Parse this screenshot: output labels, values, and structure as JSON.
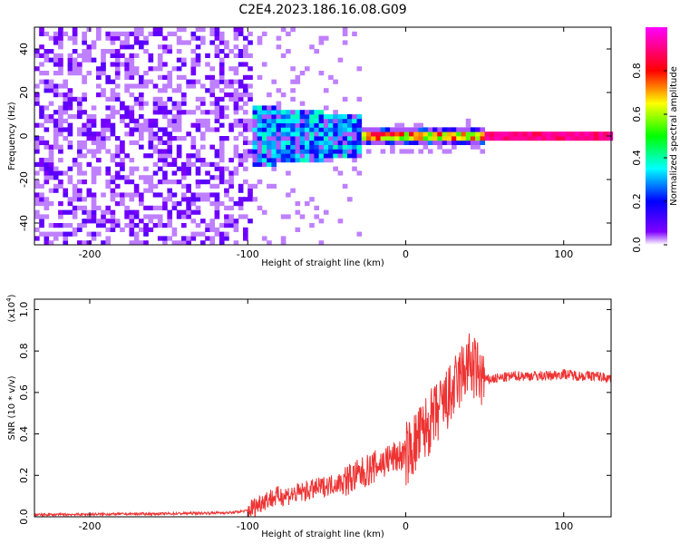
{
  "title": "C2E4.2023.186.16.08.G09",
  "chart_data": [
    {
      "type": "heatmap",
      "xlabel": "Height of straight line (km)",
      "ylabel": "Frequency (Hz)",
      "xlim": [
        -235,
        130
      ],
      "ylim": [
        -50,
        50
      ],
      "xticks": [
        -200,
        -100,
        0,
        100
      ],
      "yticks": [
        -40,
        -20,
        0,
        20,
        40
      ],
      "colorbar": {
        "label": "Normalized spectral amplitude",
        "range": [
          0.0,
          1.0
        ],
        "ticks": [
          0.0,
          0.2,
          0.4,
          0.6,
          0.8
        ],
        "colormap": [
          "#ff00ff",
          "#ff0000",
          "#ffff00",
          "#00ff00",
          "#00ffff",
          "#0000ff",
          "#7f00ff",
          "#ffffff"
        ]
      },
      "regions": [
        {
          "x_range": [
            -235,
            -97
          ],
          "freq_range": [
            -50,
            50
          ],
          "typical_amplitude": 0.05,
          "description_color": "#7f00ff"
        },
        {
          "x_range": [
            -97,
            -30
          ],
          "freq_range": [
            -12,
            14
          ],
          "typical_amplitude": 0.25
        },
        {
          "x_range": [
            -30,
            50
          ],
          "freq_range": [
            -5,
            5
          ],
          "typical_amplitude": 0.45
        },
        {
          "x_range": [
            50,
            130
          ],
          "freq_range": [
            -1,
            1
          ],
          "typical_amplitude": 0.9
        }
      ]
    },
    {
      "type": "line",
      "xlabel": "Height of straight line (km)",
      "ylabel": "SNR (10 * v/v)",
      "yscale_label": "(x10",
      "yscale_exp": "4",
      "yscale_close": ")",
      "xlim": [
        -235,
        130
      ],
      "ylim": [
        0,
        1.05
      ],
      "xticks": [
        -200,
        -100,
        0,
        100
      ],
      "yticks": [
        0.0,
        0.2,
        0.4,
        0.6,
        0.8,
        1.0
      ],
      "color": "#ee3333",
      "series": [
        {
          "x": [
            -235,
            -200,
            -150,
            -110,
            -100,
            -95,
            -90,
            -80,
            -70,
            -60,
            -50,
            -40,
            -30,
            -20,
            -10,
            0,
            5,
            10,
            15,
            20,
            25,
            30,
            35,
            40,
            45,
            50,
            60,
            70,
            80,
            90,
            100,
            110,
            120,
            130
          ],
          "values": [
            0.01,
            0.012,
            0.015,
            0.02,
            0.03,
            0.05,
            0.08,
            0.1,
            0.11,
            0.13,
            0.15,
            0.17,
            0.2,
            0.24,
            0.28,
            0.3,
            0.34,
            0.4,
            0.45,
            0.5,
            0.55,
            0.6,
            0.68,
            0.74,
            0.7,
            0.66,
            0.67,
            0.68,
            0.68,
            0.68,
            0.69,
            0.68,
            0.68,
            0.67
          ]
        }
      ]
    }
  ]
}
